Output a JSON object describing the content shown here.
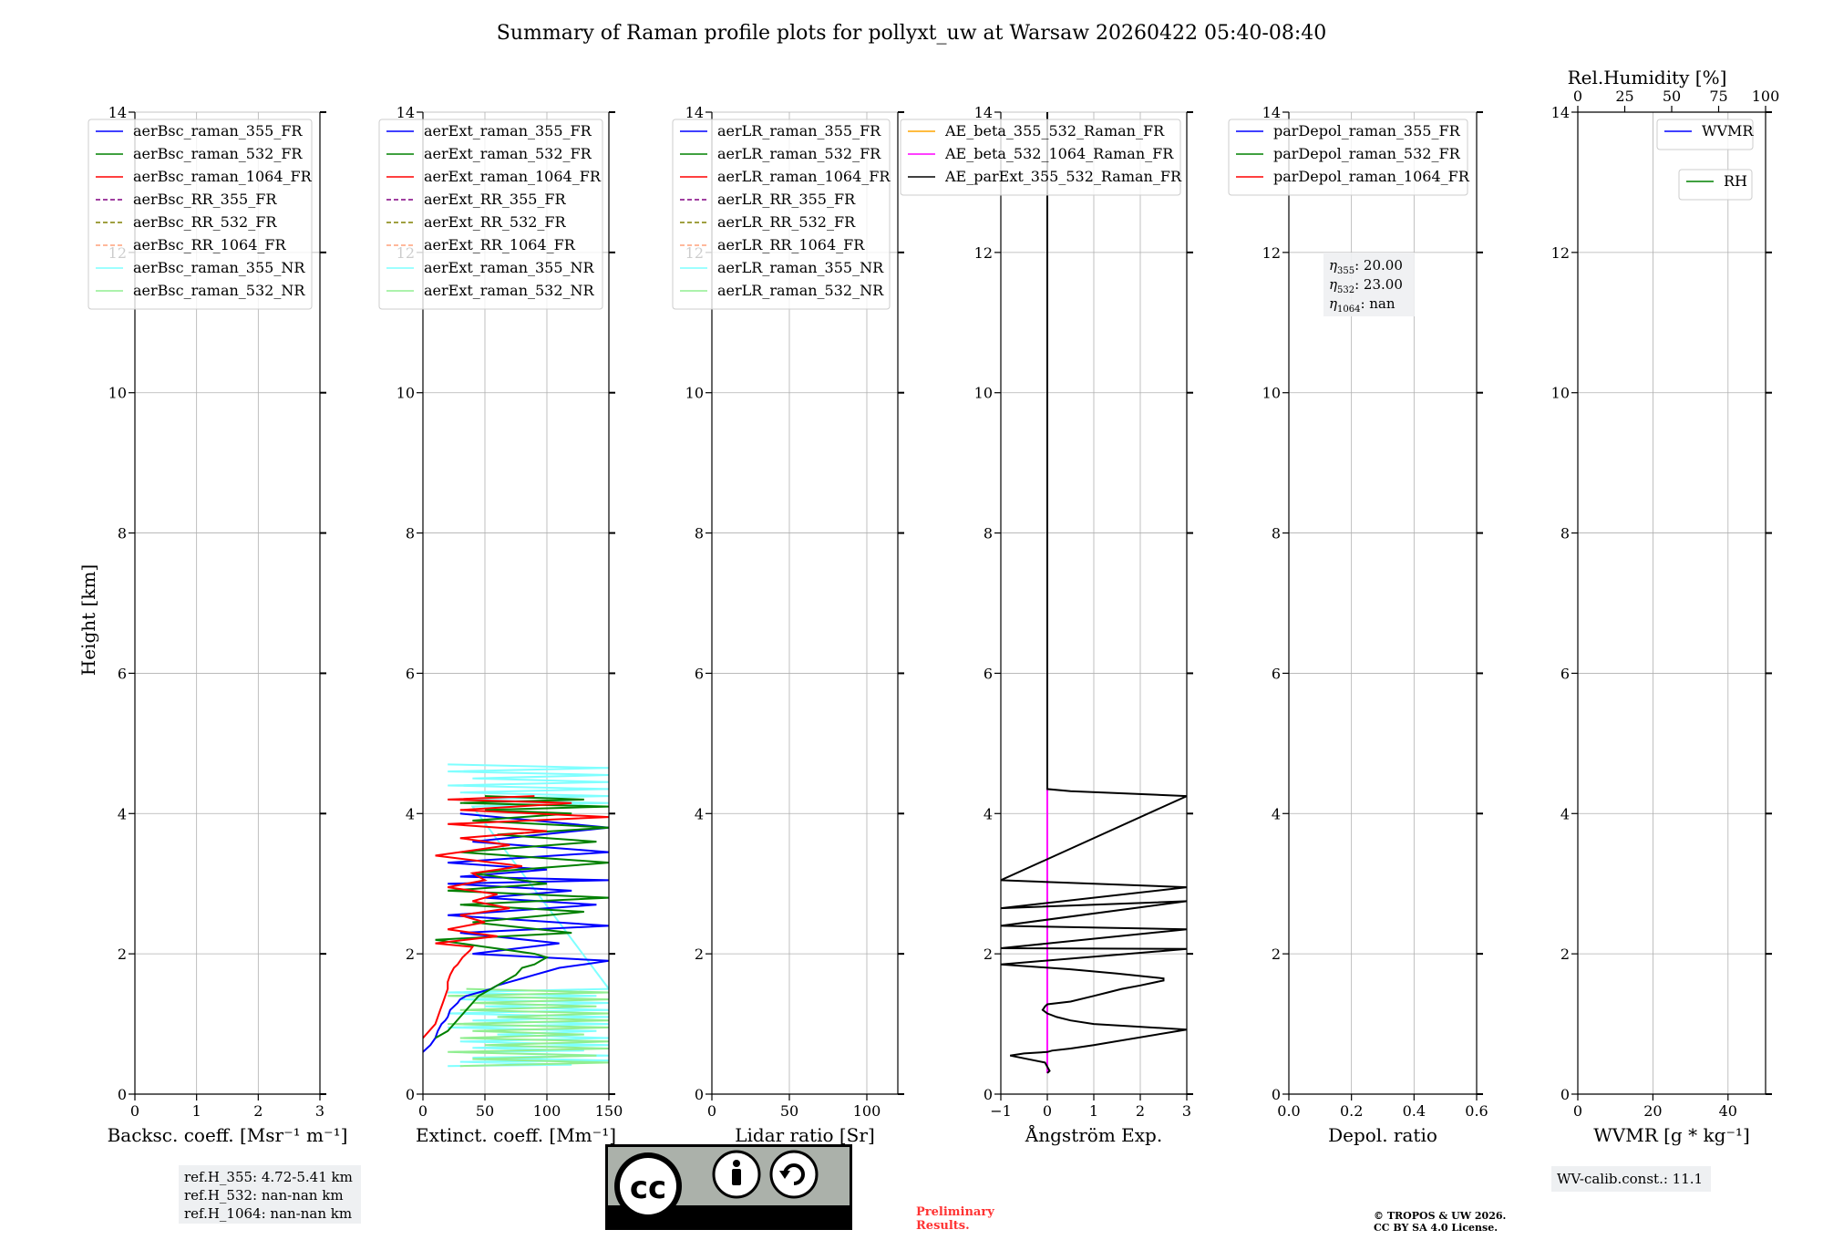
{
  "figure": {
    "title": "Summary of Raman profile plots for pollyxt_uw at Warsaw 20260422 05:40-08:40",
    "ylabel": "Height [km]"
  },
  "colors": {
    "blue": "#0000ff",
    "green": "#008000",
    "red": "#ff0000",
    "purple": "#800080",
    "olive": "#808000",
    "salmon": "#ffa07a",
    "cyan": "#7fffff",
    "lightgreen": "#90ee90",
    "orange": "#ffa500",
    "magenta": "#ff00ff",
    "black": "#000000"
  },
  "chart_data": [
    {
      "type": "line",
      "id": "bsc",
      "xlabel": "Backsc. coeff. [Msr⁻¹ m⁻¹]",
      "ylabel": "Height [km]",
      "xlim": [
        0,
        3
      ],
      "ylim": [
        0,
        14
      ],
      "xticks": [
        0,
        1,
        2,
        3
      ],
      "yticks": [
        0,
        2,
        4,
        6,
        8,
        10,
        12,
        14
      ],
      "legend": [
        {
          "label": "aerBsc_raman_355_FR",
          "color": "#0000ff",
          "dash": false
        },
        {
          "label": "aerBsc_raman_532_FR",
          "color": "#008000",
          "dash": false
        },
        {
          "label": "aerBsc_raman_1064_FR",
          "color": "#ff0000",
          "dash": false
        },
        {
          "label": "aerBsc_RR_355_FR",
          "color": "#800080",
          "dash": true
        },
        {
          "label": "aerBsc_RR_532_FR",
          "color": "#808000",
          "dash": true
        },
        {
          "label": "aerBsc_RR_1064_FR",
          "color": "#ffa07a",
          "dash": true
        },
        {
          "label": "aerBsc_raman_355_NR",
          "color": "#7fffff",
          "dash": false
        },
        {
          "label": "aerBsc_raman_532_NR",
          "color": "#90ee90",
          "dash": false
        }
      ],
      "series": []
    },
    {
      "type": "line",
      "id": "ext",
      "xlabel": "Extinct. coeff. [Mm⁻¹]",
      "ylabel": "Height [km]",
      "xlim": [
        0,
        150
      ],
      "ylim": [
        0,
        14
      ],
      "xticks": [
        0,
        50,
        100,
        150
      ],
      "yticks": [
        0,
        2,
        4,
        6,
        8,
        10,
        12,
        14
      ],
      "legend": [
        {
          "label": "aerExt_raman_355_FR",
          "color": "#0000ff",
          "dash": false
        },
        {
          "label": "aerExt_raman_532_FR",
          "color": "#008000",
          "dash": false
        },
        {
          "label": "aerExt_raman_1064_FR",
          "color": "#ff0000",
          "dash": false
        },
        {
          "label": "aerExt_RR_355_FR",
          "color": "#800080",
          "dash": true
        },
        {
          "label": "aerExt_RR_532_FR",
          "color": "#808000",
          "dash": true
        },
        {
          "label": "aerExt_RR_1064_FR",
          "color": "#ffa07a",
          "dash": true
        },
        {
          "label": "aerExt_raman_355_NR",
          "color": "#7fffff",
          "dash": false
        },
        {
          "label": "aerExt_raman_532_NR",
          "color": "#90ee90",
          "dash": false
        }
      ],
      "series": [
        {
          "name": "aerExt_raman_355_NR",
          "color": "#7fffff",
          "x": [
            20,
            120,
            30,
            150,
            40,
            150,
            25,
            130,
            40,
            150,
            30,
            150,
            60,
            140,
            20,
            150,
            40,
            150,
            20,
            150,
            50,
            150,
            30,
            140,
            20,
            150,
            40,
            150,
            20,
            150,
            30,
            150,
            20,
            150,
            40,
            150,
            20,
            150,
            20
          ],
          "y": [
            0.4,
            0.42,
            0.46,
            0.48,
            0.52,
            0.55,
            0.6,
            0.62,
            0.66,
            0.7,
            0.75,
            0.8,
            0.85,
            0.9,
            0.95,
            1.0,
            1.05,
            1.1,
            1.15,
            1.2,
            1.25,
            1.3,
            1.35,
            1.4,
            1.45,
            1.5,
            4.1,
            4.15,
            4.2,
            4.25,
            4.3,
            4.35,
            4.4,
            4.45,
            4.5,
            4.55,
            4.6,
            4.65,
            4.7
          ]
        },
        {
          "name": "aerExt_raman_532_NR",
          "color": "#90ee90",
          "x": [
            30,
            150,
            40,
            140,
            20,
            150,
            50,
            150,
            30,
            130,
            40,
            150,
            20,
            150,
            60,
            150,
            30,
            140,
            40,
            150,
            20,
            150,
            35
          ],
          "y": [
            0.4,
            0.45,
            0.5,
            0.55,
            0.6,
            0.65,
            0.7,
            0.75,
            0.8,
            0.85,
            0.9,
            0.95,
            1.0,
            1.05,
            1.1,
            1.15,
            1.2,
            1.25,
            1.3,
            1.35,
            1.4,
            1.45,
            1.5
          ]
        },
        {
          "name": "aerExt_raman_355_FR",
          "color": "#0000ff",
          "x": [
            0,
            6,
            10,
            12,
            15,
            18,
            20,
            22,
            25,
            28,
            30,
            35,
            45,
            55,
            60,
            70,
            80,
            90,
            100,
            110,
            130,
            150,
            40,
            110,
            30,
            150,
            20,
            140,
            50,
            120,
            20,
            150,
            30,
            100,
            20,
            150,
            40,
            150,
            30
          ],
          "y": [
            0.6,
            0.7,
            0.8,
            0.9,
            1.0,
            1.05,
            1.1,
            1.2,
            1.25,
            1.3,
            1.35,
            1.4,
            1.45,
            1.5,
            1.55,
            1.6,
            1.65,
            1.7,
            1.75,
            1.8,
            1.85,
            1.9,
            2.0,
            2.15,
            2.3,
            2.4,
            2.55,
            2.7,
            2.8,
            2.9,
            3.0,
            3.05,
            3.1,
            3.2,
            3.3,
            3.45,
            3.6,
            3.8,
            4.0
          ]
        },
        {
          "name": "aerExt_raman_532_FR",
          "color": "#008000",
          "x": [
            10,
            20,
            25,
            30,
            35,
            40,
            45,
            55,
            65,
            75,
            80,
            90,
            95,
            100,
            90,
            70,
            50,
            30,
            10,
            120,
            40,
            130,
            30,
            150,
            20,
            100,
            40,
            150,
            30,
            140,
            60,
            150,
            40,
            120,
            50,
            150,
            30,
            130,
            50
          ],
          "y": [
            0.8,
            0.9,
            1.0,
            1.1,
            1.2,
            1.3,
            1.4,
            1.5,
            1.6,
            1.7,
            1.8,
            1.85,
            1.9,
            1.95,
            2.0,
            2.05,
            2.1,
            2.15,
            2.2,
            2.3,
            2.45,
            2.6,
            2.7,
            2.8,
            2.9,
            3.0,
            3.15,
            3.3,
            3.45,
            3.6,
            3.7,
            3.8,
            3.9,
            4.0,
            4.05,
            4.1,
            4.15,
            4.2,
            4.25
          ]
        },
        {
          "name": "aerExt_raman_1064_FR",
          "color": "#ff0000",
          "x": [
            0,
            5,
            10,
            12,
            14,
            16,
            18,
            20,
            20,
            22,
            25,
            28,
            30,
            32,
            35,
            38,
            40,
            10,
            60,
            20,
            50,
            30,
            70,
            40,
            60,
            20,
            50,
            40,
            80,
            10,
            70,
            30,
            100,
            20,
            150,
            30,
            120,
            20,
            90
          ],
          "y": [
            0.8,
            0.9,
            1.0,
            1.1,
            1.2,
            1.3,
            1.4,
            1.5,
            1.6,
            1.7,
            1.8,
            1.85,
            1.9,
            1.95,
            2.0,
            2.05,
            2.1,
            2.15,
            2.25,
            2.35,
            2.45,
            2.55,
            2.65,
            2.75,
            2.85,
            2.95,
            3.05,
            3.15,
            3.25,
            3.4,
            3.55,
            3.65,
            3.75,
            3.85,
            3.95,
            4.05,
            4.15,
            4.2,
            4.25
          ]
        }
      ]
    },
    {
      "type": "line",
      "id": "lr",
      "xlabel": "Lidar ratio [Sr]",
      "ylabel": "Height [km]",
      "xlim": [
        0,
        120
      ],
      "ylim": [
        0,
        14
      ],
      "xticks": [
        0,
        50,
        100
      ],
      "yticks": [
        0,
        2,
        4,
        6,
        8,
        10,
        12,
        14
      ],
      "legend": [
        {
          "label": "aerLR_raman_355_FR",
          "color": "#0000ff",
          "dash": false
        },
        {
          "label": "aerLR_raman_532_FR",
          "color": "#008000",
          "dash": false
        },
        {
          "label": "aerLR_raman_1064_FR",
          "color": "#ff0000",
          "dash": false
        },
        {
          "label": "aerLR_RR_355_FR",
          "color": "#800080",
          "dash": true
        },
        {
          "label": "aerLR_RR_532_FR",
          "color": "#808000",
          "dash": true
        },
        {
          "label": "aerLR_RR_1064_FR",
          "color": "#ffa07a",
          "dash": true
        },
        {
          "label": "aerLR_raman_355_NR",
          "color": "#7fffff",
          "dash": false
        },
        {
          "label": "aerLR_raman_532_NR",
          "color": "#90ee90",
          "dash": false
        }
      ],
      "series": []
    },
    {
      "type": "line",
      "id": "ae",
      "xlabel": "Ångström Exp.",
      "ylabel": "Height [km]",
      "xlim": [
        -1,
        3
      ],
      "ylim": [
        0,
        14
      ],
      "xticks": [
        -1,
        0,
        1,
        2,
        3
      ],
      "xtick_labels": [
        "−1",
        "0",
        "1",
        "2",
        "3"
      ],
      "yticks": [
        0,
        2,
        4,
        6,
        8,
        10,
        12,
        14
      ],
      "legend": [
        {
          "label": "AE_beta_355_532_Raman_FR",
          "color": "#ffa500",
          "dash": false
        },
        {
          "label": "AE_beta_532_1064_Raman_FR",
          "color": "#ff00ff",
          "dash": false
        },
        {
          "label": "AE_parExt_355_532_Raman_FR",
          "color": "#000000",
          "dash": false
        }
      ],
      "series": [
        {
          "name": "AE_beta_532_1064_Raman_FR",
          "color": "#ff00ff",
          "x": [
            0,
            0
          ],
          "y": [
            0.3,
            4.35
          ]
        },
        {
          "name": "AE_parExt_355_532_Raman_FR",
          "color": "#000000",
          "x": [
            0,
            0.05,
            -0.05,
            -0.8,
            -0.5,
            0,
            0.1,
            0.5,
            1.0,
            3,
            1.0,
            0.5,
            0.2,
            0,
            -0.1,
            -0.05,
            0,
            0.5,
            1,
            1.3,
            1.6,
            2.0,
            2.5,
            2.5,
            1.5,
            0.5,
            -1,
            3,
            -1,
            3,
            -1,
            3,
            -1,
            3,
            -1,
            3,
            0.5,
            0,
            0,
            0
          ],
          "y": [
            0.3,
            0.33,
            0.45,
            0.55,
            0.58,
            0.6,
            0.62,
            0.65,
            0.7,
            0.92,
            1.0,
            1.05,
            1.1,
            1.15,
            1.2,
            1.25,
            1.28,
            1.32,
            1.4,
            1.45,
            1.5,
            1.55,
            1.62,
            1.65,
            1.72,
            1.78,
            1.85,
            2.07,
            2.08,
            2.35,
            2.4,
            2.75,
            2.65,
            2.95,
            3.05,
            4.25,
            4.32,
            4.35,
            8.0,
            14.0
          ]
        }
      ]
    },
    {
      "type": "line",
      "id": "depol",
      "xlabel": "Depol. ratio",
      "ylabel": "Height [km]",
      "xlim": [
        0,
        0.6
      ],
      "ylim": [
        0,
        14
      ],
      "xticks": [
        0,
        0.2,
        0.4,
        0.6
      ],
      "xtick_labels": [
        "0.0",
        "0.2",
        "0.4",
        "0.6"
      ],
      "yticks": [
        0,
        2,
        4,
        6,
        8,
        10,
        12,
        14
      ],
      "legend": [
        {
          "label": "parDepol_raman_355_FR",
          "color": "#0000ff",
          "dash": false
        },
        {
          "label": "parDepol_raman_532_FR",
          "color": "#008000",
          "dash": false
        },
        {
          "label": "parDepol_raman_1064_FR",
          "color": "#ff0000",
          "dash": false
        }
      ],
      "annotation": [
        {
          "sym": "η",
          "sub": "355",
          "val": ": 20.00"
        },
        {
          "sym": "η",
          "sub": "532",
          "val": ": 23.00"
        },
        {
          "sym": "η",
          "sub": "1064",
          "val": ": nan"
        }
      ],
      "series": []
    },
    {
      "type": "line",
      "id": "wv",
      "xlabel": "WVMR [g * kg⁻¹]",
      "ylabel": "Height [km]",
      "xlim": [
        0,
        50
      ],
      "ylim": [
        0,
        14
      ],
      "xticks": [
        0,
        20,
        40
      ],
      "yticks": [
        0,
        2,
        4,
        6,
        8,
        10,
        12,
        14
      ],
      "top_axis": {
        "label": "Rel.Humidity [%]",
        "lim": [
          0,
          100
        ],
        "ticks": [
          0,
          25,
          50,
          75,
          100
        ]
      },
      "legend": [
        {
          "label": "WVMR",
          "color": "#0000ff",
          "dash": false
        }
      ],
      "legend2": [
        {
          "label": "RH",
          "color": "#008000",
          "dash": false
        }
      ],
      "series": []
    }
  ],
  "notes": {
    "refh": [
      "ref.H_355: 4.72-5.41 km",
      "ref.H_532: nan-nan km",
      "ref.H_1064: nan-nan km"
    ],
    "wv_calib": "WV-calib.const.: 11.1",
    "preliminary": [
      "Preliminary",
      "Results."
    ],
    "copyright": [
      "© TROPOS & UW 2026.",
      "CC BY SA 4.0 License."
    ],
    "license": {
      "cc": "cc",
      "by": "BY",
      "sa": "SA"
    }
  }
}
